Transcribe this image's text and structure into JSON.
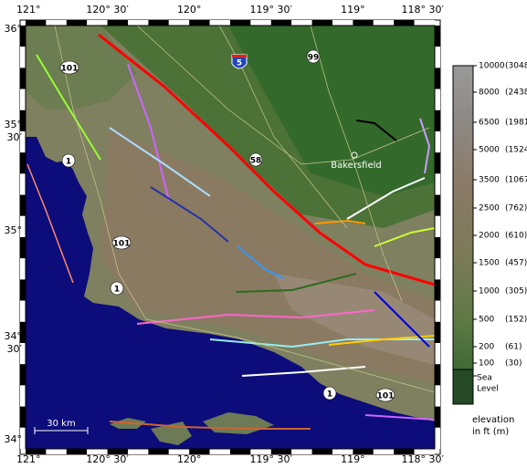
{
  "map": {
    "lon_labels": [
      "121°",
      "120° 30′",
      "120°",
      "119° 30′",
      "119°",
      "118° 30′"
    ],
    "lat_labels": [
      [
        "36°"
      ],
      [
        "35°",
        "30′"
      ],
      [
        "35°"
      ],
      [
        "34°",
        "30′"
      ],
      [
        "34°"
      ]
    ],
    "roads": [
      {
        "label": "5",
        "kind": "interstate"
      },
      {
        "label": "99",
        "kind": "state"
      },
      {
        "label": "58",
        "kind": "state"
      },
      {
        "label": "101",
        "kind": "state"
      },
      {
        "label": "101",
        "kind": "state"
      },
      {
        "label": "101",
        "kind": "state"
      },
      {
        "label": "1",
        "kind": "state"
      },
      {
        "label": "1",
        "kind": "state"
      },
      {
        "label": "1",
        "kind": "state"
      }
    ],
    "city": "Bakersfield",
    "scale_label": "30 km",
    "legend": {
      "entries": [
        [
          "10000",
          "(3048)"
        ],
        [
          "8000",
          "(2438)"
        ],
        [
          "6500",
          "(1981)"
        ],
        [
          "5000",
          "(1524)"
        ],
        [
          "3500",
          "(1067)"
        ],
        [
          "2500",
          "(762)"
        ],
        [
          "2000",
          "(610)"
        ],
        [
          "1500",
          "(457)"
        ],
        [
          "1000",
          "(305)"
        ],
        [
          "500",
          "(152)"
        ],
        [
          "200",
          "(61)"
        ],
        [
          "100",
          "(30)"
        ]
      ],
      "sea_level": [
        "Sea",
        "Level"
      ],
      "title": [
        "elevation",
        "in ft (m)"
      ]
    }
  }
}
